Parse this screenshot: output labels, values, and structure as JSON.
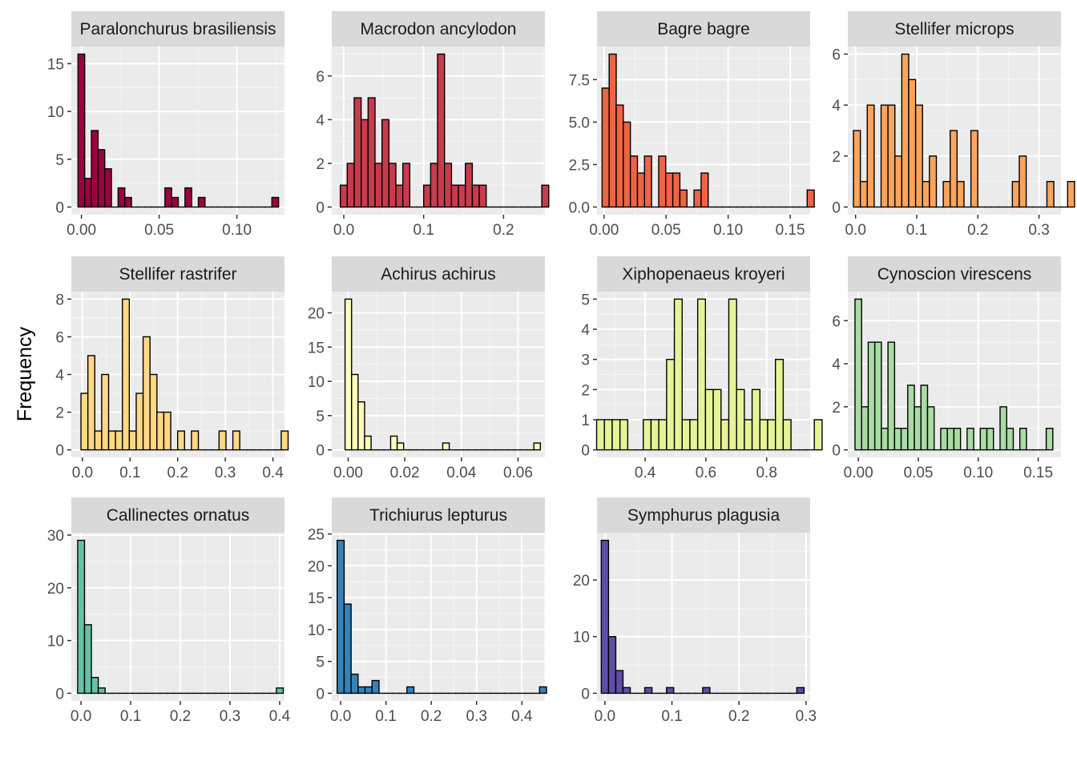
{
  "chart_data": {
    "type": "bar",
    "chart_kind": "faceted histogram",
    "ylabel": "Frequency",
    "xlabel": "",
    "grid": true,
    "legend": "none",
    "panels": [
      {
        "title": "Paralonchurus brasiliensis",
        "fill": "#9e0142",
        "xlim": [
          -0.0065,
          0.1306
        ],
        "ylim": [
          -0.8,
          16.8
        ],
        "xticks": [
          0,
          0.05,
          0.1
        ],
        "xtick_labels": [
          "0.00",
          "0.05",
          "0.10"
        ],
        "yticks": [
          0,
          5,
          10,
          15
        ],
        "ytick_labels": [
          "0",
          "5",
          "10",
          "15"
        ],
        "bin_start": -0.0022,
        "bin_width": 0.0043,
        "counts": [
          16,
          3,
          8,
          6,
          4,
          0,
          2,
          1,
          0,
          0,
          0,
          0,
          0,
          2,
          1,
          0,
          2,
          0,
          1,
          0,
          0,
          0,
          0,
          0,
          0,
          0,
          0,
          0,
          0,
          1
        ]
      },
      {
        "title": "Macrodon ancylodon",
        "fill": "#c83b4b",
        "xlim": [
          -0.0151,
          0.2518
        ],
        "ylim": [
          -0.35,
          7.35
        ],
        "xticks": [
          0,
          0.1,
          0.2
        ],
        "xtick_labels": [
          "0.0",
          "0.1",
          "0.2"
        ],
        "yticks": [
          0,
          2,
          4,
          6
        ],
        "ytick_labels": [
          "0",
          "2",
          "4",
          "6"
        ],
        "bin_start": -0.0044,
        "bin_width": 0.0087,
        "counts": [
          1,
          2,
          5,
          4,
          5,
          2,
          4,
          2,
          1,
          2,
          0,
          0,
          1,
          2,
          7,
          2,
          1,
          1,
          2,
          1,
          1,
          0,
          0,
          0,
          0,
          0,
          0,
          0,
          0,
          1
        ]
      },
      {
        "title": "Bagre bagre",
        "fill": "#ee6445",
        "xlim": [
          -0.0057,
          0.1661
        ],
        "ylim": [
          -0.45,
          9.45
        ],
        "xticks": [
          0,
          0.05,
          0.1,
          0.15
        ],
        "xtick_labels": [
          "0.00",
          "0.05",
          "0.10",
          "0.15"
        ],
        "yticks": [
          0,
          2.5,
          5,
          7.5
        ],
        "ytick_labels": [
          "0.0",
          "2.5",
          "5.0",
          "7.5"
        ],
        "bin_start": -0.0016,
        "bin_width": 0.0057,
        "counts": [
          7,
          9,
          6,
          5,
          3,
          2,
          3,
          0,
          3,
          2,
          2,
          1,
          0,
          1,
          2,
          0,
          0,
          0,
          0,
          0,
          0,
          0,
          0,
          0,
          0,
          0,
          0,
          0,
          0,
          1
        ]
      },
      {
        "title": "Stellifer microps",
        "fill": "#fba45c",
        "xlim": [
          -0.0127,
          0.3359
        ],
        "ylim": [
          -0.3,
          6.3
        ],
        "xticks": [
          0,
          0.1,
          0.2,
          0.3
        ],
        "xtick_labels": [
          "0.0",
          "0.1",
          "0.2",
          "0.3"
        ],
        "yticks": [
          0,
          2,
          4,
          6
        ],
        "ytick_labels": [
          "0",
          "2",
          "4",
          "6"
        ],
        "bin_start": -0.0035,
        "bin_width": 0.0113,
        "counts": [
          3,
          1,
          4,
          0,
          4,
          4,
          2,
          6,
          5,
          4,
          1,
          2,
          0,
          1,
          3,
          1,
          0,
          3,
          0,
          0,
          0,
          0,
          0,
          1,
          2,
          0,
          0,
          0,
          1,
          0,
          0,
          1
        ]
      },
      {
        "title": "Stellifer rastrifer",
        "fill": "#fed883",
        "xlim": [
          -0.0234,
          0.4243
        ],
        "ylim": [
          -0.4,
          8.4
        ],
        "xticks": [
          0,
          0.1,
          0.2,
          0.3,
          0.4
        ],
        "xtick_labels": [
          "0.0",
          "0.1",
          "0.2",
          "0.3",
          "0.4"
        ],
        "yticks": [
          0,
          2,
          4,
          6,
          8
        ],
        "ytick_labels": [
          "0",
          "2",
          "4",
          "6",
          "8"
        ],
        "bin_start": -0.0031,
        "bin_width": 0.0145,
        "counts": [
          3,
          5,
          1,
          4,
          1,
          1,
          8,
          1,
          3,
          6,
          4,
          2,
          2,
          0,
          1,
          0,
          1,
          0,
          0,
          0,
          1,
          0,
          1,
          0,
          0,
          0,
          0,
          0,
          0,
          1
        ]
      },
      {
        "title": "Achirus achirus",
        "fill": "#fefeb9",
        "xlim": [
          -0.0058,
          0.0695
        ],
        "ylim": [
          -1.1,
          23.1
        ],
        "xticks": [
          0,
          0.02,
          0.04,
          0.06
        ],
        "xtick_labels": [
          "0.00",
          "0.02",
          "0.04",
          "0.06"
        ],
        "yticks": [
          0,
          5,
          10,
          15,
          20
        ],
        "ytick_labels": [
          "0",
          "5",
          "10",
          "15",
          "20"
        ],
        "bin_start": -0.0011,
        "bin_width": 0.0023,
        "counts": [
          22,
          11,
          7,
          2,
          0,
          0,
          0,
          2,
          1,
          0,
          0,
          0,
          0,
          0,
          0,
          1,
          0,
          0,
          0,
          0,
          0,
          0,
          0,
          0,
          0,
          0,
          0,
          0,
          0,
          1
        ]
      },
      {
        "title": "Xiphopenaeus kroyeri",
        "fill": "#e6f498",
        "xlim": [
          0.2414,
          0.9433
        ],
        "ylim": [
          -0.25,
          5.25
        ],
        "xticks": [
          0.4,
          0.6,
          0.8
        ],
        "xtick_labels": [
          "0.4",
          "0.6",
          "0.8"
        ],
        "yticks": [
          0,
          1,
          2,
          3,
          4,
          5
        ],
        "ytick_labels": [
          "0",
          "1",
          "2",
          "3",
          "4",
          "5"
        ],
        "bin_start": 0.2402,
        "bin_width": 0.0256,
        "counts": [
          1,
          1,
          1,
          1,
          0,
          0,
          1,
          1,
          1,
          3,
          5,
          1,
          1,
          5,
          2,
          2,
          1,
          5,
          2,
          1,
          2,
          1,
          1,
          3,
          1,
          0,
          0,
          0,
          1
        ]
      },
      {
        "title": "Cynoscion virescens",
        "fill": "#a9dca3",
        "xlim": [
          -0.0088,
          0.169
        ],
        "ylim": [
          -0.35,
          7.35
        ],
        "xticks": [
          0,
          0.05,
          0.1,
          0.15
        ],
        "xtick_labels": [
          "0.00",
          "0.05",
          "0.10",
          "0.15"
        ],
        "yticks": [
          0,
          2,
          4,
          6
        ],
        "ytick_labels": [
          "0",
          "2",
          "4",
          "6"
        ],
        "bin_start": -0.0028,
        "bin_width": 0.0055,
        "counts": [
          7,
          2,
          5,
          5,
          1,
          5,
          1,
          1,
          3,
          2,
          3,
          2,
          0,
          1,
          1,
          1,
          0,
          1,
          0,
          1,
          1,
          0,
          2,
          1,
          0,
          1,
          0,
          0,
          0,
          1
        ]
      },
      {
        "title": "Callinectes ornatus",
        "fill": "#62c4a5",
        "xlim": [
          -0.0195,
          0.4097
        ],
        "ylim": [
          -1.45,
          30.45
        ],
        "xticks": [
          0,
          0.1,
          0.2,
          0.3,
          0.4
        ],
        "xtick_labels": [
          "0.0",
          "0.1",
          "0.2",
          "0.3",
          "0.4"
        ],
        "yticks": [
          0,
          10,
          20,
          30
        ],
        "ytick_labels": [
          "0",
          "10",
          "20",
          "30"
        ],
        "bin_start": -0.0067,
        "bin_width": 0.0138,
        "counts": [
          29,
          13,
          3,
          1,
          0,
          0,
          0,
          0,
          0,
          0,
          0,
          0,
          0,
          0,
          0,
          0,
          0,
          0,
          0,
          0,
          0,
          0,
          0,
          0,
          0,
          0,
          0,
          0,
          0,
          1
        ]
      },
      {
        "title": "Trichiurus lepturus",
        "fill": "#3682ba",
        "xlim": [
          -0.0196,
          0.4508
        ],
        "ylim": [
          -1.2,
          25.2
        ],
        "xticks": [
          0,
          0.1,
          0.2,
          0.3,
          0.4
        ],
        "xtick_labels": [
          "0.0",
          "0.1",
          "0.2",
          "0.3",
          "0.4"
        ],
        "yticks": [
          0,
          5,
          10,
          15,
          20,
          25
        ],
        "ytick_labels": [
          "0",
          "5",
          "10",
          "15",
          "20",
          "25"
        ],
        "bin_start": -0.0077,
        "bin_width": 0.0154,
        "counts": [
          24,
          14,
          3,
          1,
          1,
          2,
          0,
          0,
          0,
          0,
          1,
          0,
          0,
          0,
          0,
          0,
          0,
          0,
          0,
          0,
          0,
          0,
          0,
          0,
          0,
          0,
          0,
          0,
          0,
          1
        ]
      },
      {
        "title": "Symphurus plagusia",
        "fill": "#5e4fa2",
        "xlim": [
          -0.0118,
          0.3061
        ],
        "ylim": [
          -1.35,
          28.35
        ],
        "xticks": [
          0,
          0.1,
          0.2,
          0.3
        ],
        "xtick_labels": [
          "0.0",
          "0.1",
          "0.2",
          "0.3"
        ],
        "yticks": [
          0,
          10,
          20
        ],
        "ytick_labels": [
          "0",
          "10",
          "20"
        ],
        "bin_start": -0.0054,
        "bin_width": 0.0108,
        "counts": [
          27,
          10,
          4,
          1,
          0,
          0,
          1,
          0,
          0,
          1,
          0,
          0,
          0,
          0,
          1,
          0,
          0,
          0,
          0,
          0,
          0,
          0,
          0,
          0,
          0,
          0,
          0,
          1
        ]
      }
    ]
  }
}
